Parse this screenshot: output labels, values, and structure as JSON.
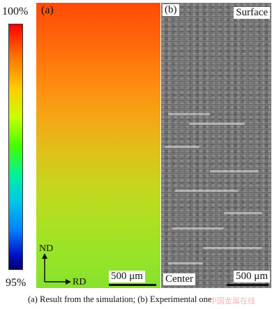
{
  "legend": {
    "top_label": "100%",
    "bottom_label": "95%"
  },
  "panel_a": {
    "label": "(a)",
    "axis_nd": "ND",
    "axis_rd": "RD",
    "scale_bar": "500 μm"
  },
  "panel_b": {
    "label": "(b)",
    "surface_label": "Surface",
    "center_label": "Center",
    "scale_bar": "500 μm"
  },
  "caption": "(a) Result from the simulation; (b) Experimental one",
  "watermark": "中国金属在线"
}
